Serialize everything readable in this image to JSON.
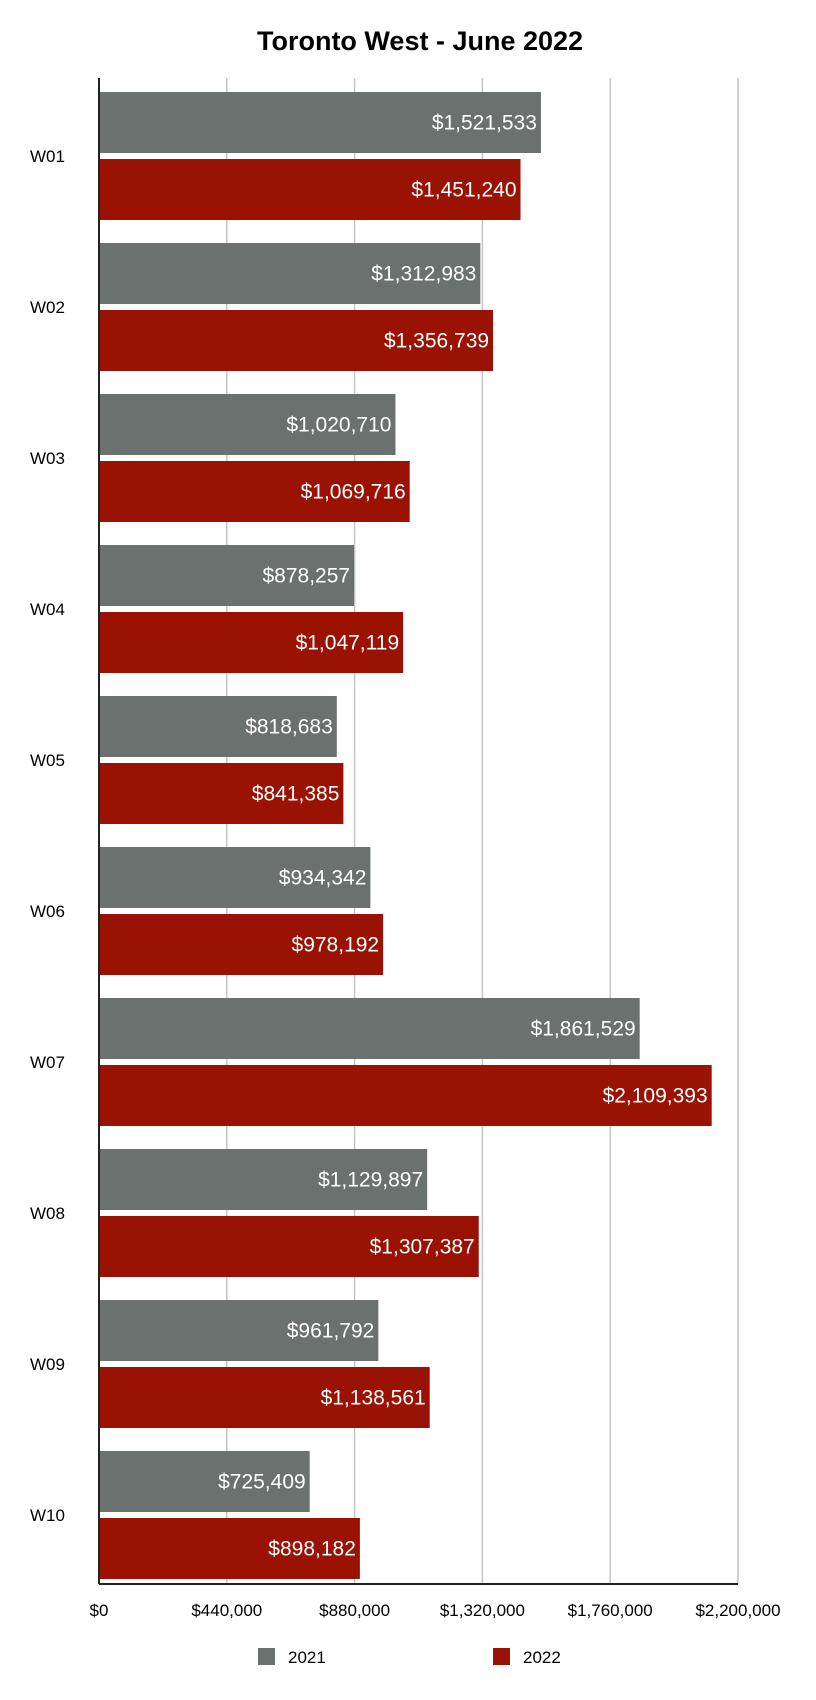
{
  "chart_data": {
    "type": "bar",
    "orientation": "horizontal",
    "title": "Toronto West - June 2022",
    "xlabel": "",
    "ylabel": "",
    "categories": [
      "W01",
      "W02",
      "W03",
      "W04",
      "W05",
      "W06",
      "W07",
      "W08",
      "W09",
      "W10"
    ],
    "series": [
      {
        "name": "2021",
        "color": "#6b716e",
        "values": [
          1521533,
          1312983,
          1020710,
          878257,
          818683,
          934342,
          1861529,
          1129897,
          961792,
          725409
        ],
        "labels": [
          "$1,521,533",
          "$1,312,983",
          "$1,020,710",
          "$878,257",
          "$818,683",
          "$934,342",
          "$1,861,529",
          "$1,129,897",
          "$961,792",
          "$725,409"
        ]
      },
      {
        "name": "2022",
        "color": "#9a1203",
        "values": [
          1451240,
          1356739,
          1069716,
          1047119,
          841385,
          978192,
          2109393,
          1307387,
          1138561,
          898182
        ],
        "labels": [
          "$1,451,240",
          "$1,356,739",
          "$1,069,716",
          "$1,047,119",
          "$841,385",
          "$978,192",
          "$2,109,393",
          "$1,307,387",
          "$1,138,561",
          "$898,182"
        ]
      }
    ],
    "xlim": [
      0,
      2200000
    ],
    "ticks": [
      0,
      440000,
      880000,
      1320000,
      1760000,
      2200000
    ],
    "tick_labels": [
      "$0",
      "$440,000",
      "$880,000",
      "$1,320,000",
      "$1,760,000",
      "$2,200,000"
    ],
    "grid": true,
    "legend_position": "bottom"
  }
}
